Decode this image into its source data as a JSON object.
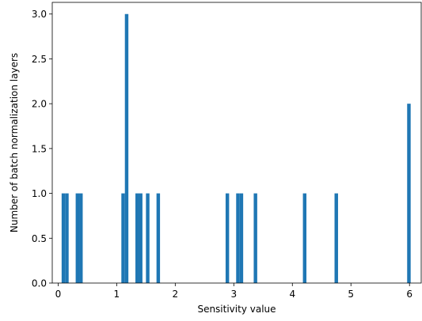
{
  "chart_data": {
    "type": "bar",
    "title": "",
    "xlabel": "Sensitivity value",
    "ylabel": "Number of batch normalization layers",
    "xlim": [
      -0.1,
      6.2
    ],
    "ylim": [
      0,
      3.13
    ],
    "xticks": [
      0,
      1,
      2,
      3,
      4,
      5,
      6
    ],
    "xtick_labels": [
      "0",
      "1",
      "2",
      "3",
      "4",
      "5",
      "6"
    ],
    "yticks": [
      0,
      0.5,
      1.0,
      1.5,
      2.0,
      2.5,
      3.0
    ],
    "ytick_labels": [
      "0.0",
      "0.5",
      "1.0",
      "1.5",
      "2.0",
      "2.5",
      "3.0"
    ],
    "bin_width": 0.06,
    "bins": [
      {
        "x": 0.09,
        "count": 1
      },
      {
        "x": 0.15,
        "count": 1
      },
      {
        "x": 0.33,
        "count": 1
      },
      {
        "x": 0.39,
        "count": 1
      },
      {
        "x": 1.11,
        "count": 1
      },
      {
        "x": 1.17,
        "count": 3
      },
      {
        "x": 1.35,
        "count": 1
      },
      {
        "x": 1.41,
        "count": 1
      },
      {
        "x": 1.53,
        "count": 1
      },
      {
        "x": 1.71,
        "count": 1
      },
      {
        "x": 2.89,
        "count": 1
      },
      {
        "x": 3.07,
        "count": 1
      },
      {
        "x": 3.13,
        "count": 1
      },
      {
        "x": 3.37,
        "count": 1
      },
      {
        "x": 4.21,
        "count": 1
      },
      {
        "x": 4.75,
        "count": 1
      },
      {
        "x": 5.99,
        "count": 2
      }
    ],
    "bar_color": "#1f77b4",
    "grid": false,
    "legend": "none"
  }
}
